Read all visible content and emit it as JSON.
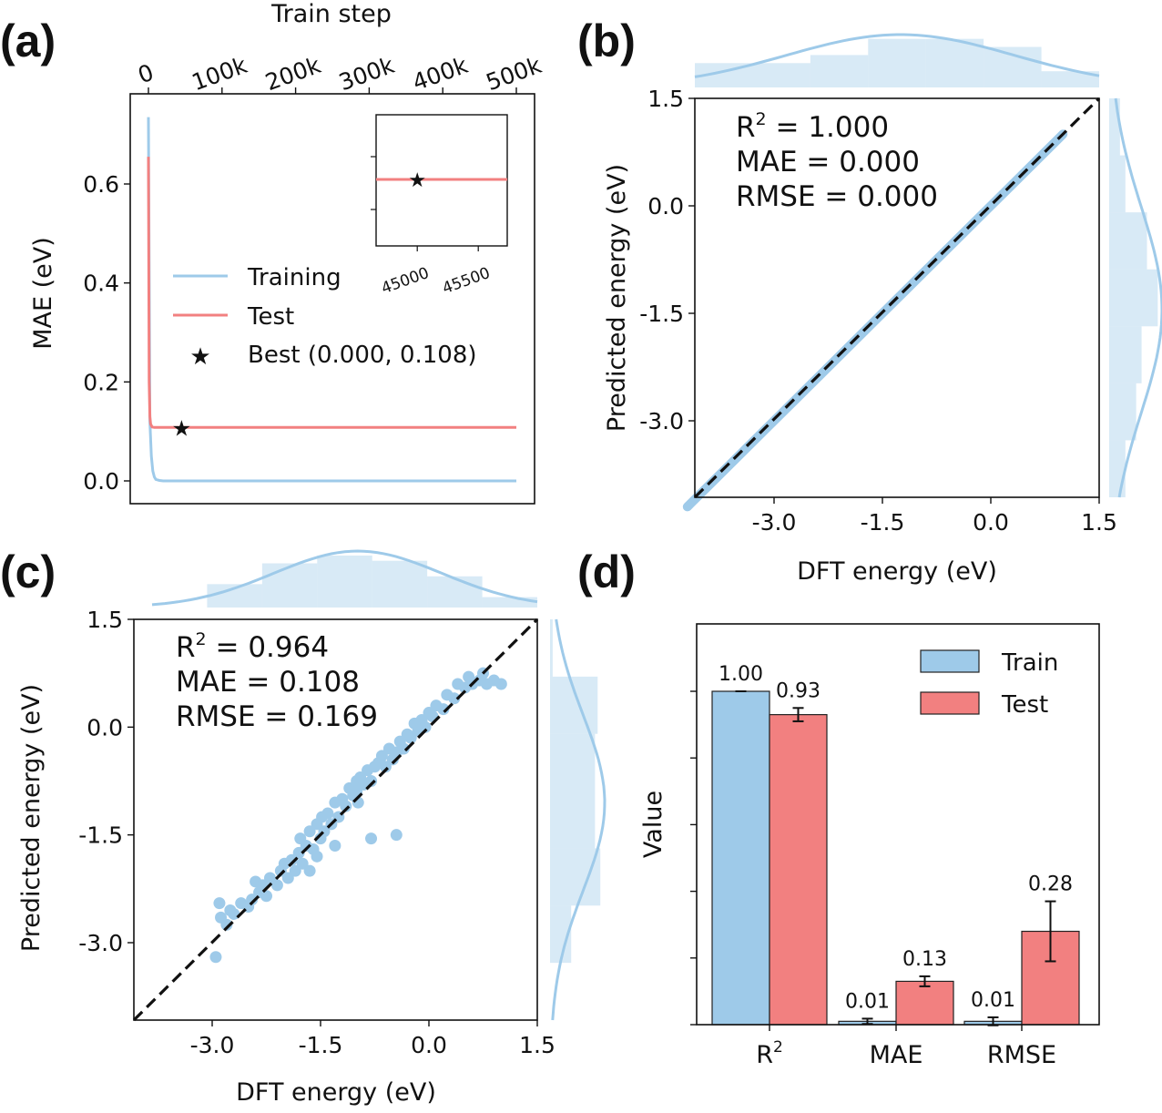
{
  "colors": {
    "train": "#9ecae9",
    "test": "#f28080",
    "best": "#e41a1c",
    "diag": "#111111",
    "edge": "#222222"
  },
  "panels": {
    "a": {
      "tag": "(a)",
      "xlabel_top": "Train step",
      "ylabel": "MAE (eV)"
    },
    "b": {
      "tag": "(b)",
      "xlabel": "DFT energy (eV)",
      "ylabel": "Predicted energy (eV)",
      "stats": {
        "r2_label": "R",
        "r2_sup": "2",
        "r2_value": " = 1.000",
        "mae": "MAE = 0.000",
        "rmse": "RMSE = 0.000"
      }
    },
    "c": {
      "tag": "(c)",
      "xlabel": "DFT energy (eV)",
      "ylabel": "Predicted energy (eV)",
      "stats": {
        "r2_label": "R",
        "r2_sup": "2",
        "r2_value": " = 0.964",
        "mae": "MAE = 0.108",
        "rmse": "RMSE = 0.169"
      }
    },
    "d": {
      "tag": "(d)",
      "ylabel": "Value"
    }
  },
  "chart_data": [
    {
      "id": "a",
      "type": "line",
      "xlabel": "Train step",
      "ylabel": "MAE (eV)",
      "xlim": [
        0,
        500000
      ],
      "ylim": [
        -0.02,
        0.78
      ],
      "x_ticks": [
        0,
        100000,
        200000,
        300000,
        400000,
        500000
      ],
      "x_tick_labels": [
        "0",
        "100k",
        "200k",
        "300k",
        "400k",
        "500k"
      ],
      "y_ticks": [
        0.0,
        0.2,
        0.4,
        0.6
      ],
      "y_tick_labels": [
        "0.0",
        "0.2",
        "0.4",
        "0.6"
      ],
      "series": [
        {
          "name": "Training",
          "x": [
            0,
            2000,
            4000,
            6000,
            8000,
            10000,
            15000,
            20000,
            500000
          ],
          "y": [
            0.735,
            0.12,
            0.05,
            0.02,
            0.008,
            0.003,
            0.001,
            0.0,
            0.0
          ]
        },
        {
          "name": "Test",
          "x": [
            0,
            1000,
            2000,
            3000,
            5000,
            8000,
            500000
          ],
          "y": [
            0.655,
            0.2,
            0.13,
            0.115,
            0.109,
            0.108,
            0.108
          ]
        }
      ],
      "best": {
        "label": "Best (0.000, 0.108)",
        "x": 45000,
        "y": 0.108
      },
      "legend": [
        "Training",
        "Test",
        "Best (0.000, 0.108)"
      ],
      "legend_position": "center-left",
      "inset": {
        "xlim": [
          44700,
          45700
        ],
        "x_ticks": [
          45000,
          45500
        ],
        "x_tick_labels": [
          "45000",
          "45500"
        ],
        "point": {
          "x": 45000,
          "y": 0.108
        }
      }
    },
    {
      "id": "b",
      "type": "scatter",
      "xlabel": "DFT energy (eV)",
      "ylabel": "Predicted energy (eV)",
      "xlim": [
        -4.3,
        1.5
      ],
      "ylim": [
        -4.3,
        1.5
      ],
      "ticks": [
        -3.0,
        -1.5,
        0.0,
        1.5
      ],
      "tick_labels": [
        "-3.0",
        "-1.5",
        "0.0",
        "1.5"
      ],
      "x": [
        -4.2,
        -3.9,
        -3.6,
        -3.3,
        -3.0,
        -2.7,
        -2.4,
        -2.1,
        -1.8,
        -1.5,
        -1.2,
        -0.9,
        -0.6,
        -0.3,
        0.0,
        0.3,
        0.6,
        0.9,
        1.0
      ],
      "y": [
        -4.2,
        -3.9,
        -3.6,
        -3.3,
        -3.0,
        -2.7,
        -2.4,
        -2.1,
        -1.8,
        -1.5,
        -1.2,
        -0.9,
        -0.6,
        -0.3,
        0.0,
        0.3,
        0.6,
        0.9,
        1.0
      ],
      "annotations": [
        "R2 = 1.000",
        "MAE = 0.000",
        "RMSE = 0.000"
      ]
    },
    {
      "id": "c",
      "type": "scatter",
      "xlabel": "DFT energy (eV)",
      "ylabel": "Predicted energy (eV)",
      "xlim": [
        -4.0,
        1.5
      ],
      "ylim": [
        -4.0,
        1.5
      ],
      "ticks": [
        -3.0,
        -1.5,
        0.0,
        1.5
      ],
      "tick_labels": [
        "-3.0",
        "-1.5",
        "0.0",
        "1.5"
      ],
      "x": [
        -2.95,
        -2.9,
        -2.88,
        -2.8,
        -2.75,
        -2.7,
        -2.6,
        -2.5,
        -2.45,
        -2.4,
        -2.3,
        -2.25,
        -2.2,
        -2.1,
        -2.05,
        -2.0,
        -1.95,
        -1.9,
        -1.85,
        -1.8,
        -1.78,
        -1.75,
        -1.7,
        -1.65,
        -1.6,
        -1.55,
        -1.5,
        -1.48,
        -1.45,
        -1.4,
        -1.35,
        -1.3,
        -1.25,
        -1.2,
        -1.15,
        -1.1,
        -1.05,
        -1.0,
        -0.98,
        -0.95,
        -0.9,
        -0.85,
        -0.8,
        -0.75,
        -0.7,
        -0.65,
        -0.6,
        -0.55,
        -0.5,
        -0.45,
        -0.4,
        -0.35,
        -0.3,
        -0.25,
        -0.2,
        -0.15,
        -0.1,
        -0.05,
        0.0,
        0.05,
        0.1,
        0.2,
        0.25,
        0.35,
        0.4,
        0.5,
        0.55,
        0.6,
        0.7,
        0.75,
        0.8,
        0.9,
        1.0,
        -1.3,
        -0.8,
        -0.45,
        -1.55,
        -1.65,
        -2.35,
        -1.0
      ],
      "y": [
        -3.2,
        -2.45,
        -2.65,
        -2.75,
        -2.55,
        -2.6,
        -2.45,
        -2.5,
        -2.4,
        -2.15,
        -2.2,
        -2.35,
        -2.1,
        -2.2,
        -2.0,
        -1.9,
        -2.1,
        -1.85,
        -2.0,
        -1.75,
        -1.55,
        -1.9,
        -1.65,
        -1.45,
        -1.7,
        -1.35,
        -1.55,
        -1.25,
        -1.45,
        -1.2,
        -1.35,
        -1.05,
        -1.25,
        -1.0,
        -1.1,
        -0.85,
        -0.95,
        -0.75,
        -1.05,
        -0.7,
        -0.8,
        -0.6,
        -0.75,
        -0.55,
        -0.5,
        -0.4,
        -0.55,
        -0.3,
        -0.45,
        -0.35,
        -0.2,
        -0.3,
        -0.1,
        -0.15,
        0.05,
        -0.05,
        0.1,
        0.0,
        0.2,
        0.15,
        0.3,
        0.25,
        0.45,
        0.4,
        0.6,
        0.55,
        0.7,
        0.6,
        0.65,
        0.75,
        0.6,
        0.65,
        0.6,
        -1.65,
        -1.55,
        -1.5,
        -1.8,
        -2.0,
        -2.3,
        -0.9
      ],
      "annotations": [
        "R2 = 0.964",
        "MAE = 0.108",
        "RMSE = 0.169"
      ]
    },
    {
      "id": "d",
      "type": "bar",
      "ylabel": "Value",
      "ylim": [
        0,
        1.2
      ],
      "categories": [
        "R2",
        "MAE",
        "RMSE"
      ],
      "category_labels": [
        {
          "base": "R",
          "sup": "2"
        },
        {
          "base": "MAE",
          "sup": ""
        },
        {
          "base": "RMSE",
          "sup": ""
        }
      ],
      "series": [
        {
          "name": "Train",
          "values": [
            1.0,
            0.01,
            0.01
          ],
          "errors": [
            0.0,
            0.008,
            0.012
          ],
          "labels": [
            "1.00",
            "0.01",
            "0.01"
          ]
        },
        {
          "name": "Test",
          "values": [
            0.93,
            0.13,
            0.28
          ],
          "errors": [
            0.02,
            0.015,
            0.09
          ],
          "labels": [
            "0.93",
            "0.13",
            "0.28"
          ]
        }
      ],
      "legend": [
        "Train",
        "Test"
      ],
      "legend_position": "top-right"
    }
  ]
}
